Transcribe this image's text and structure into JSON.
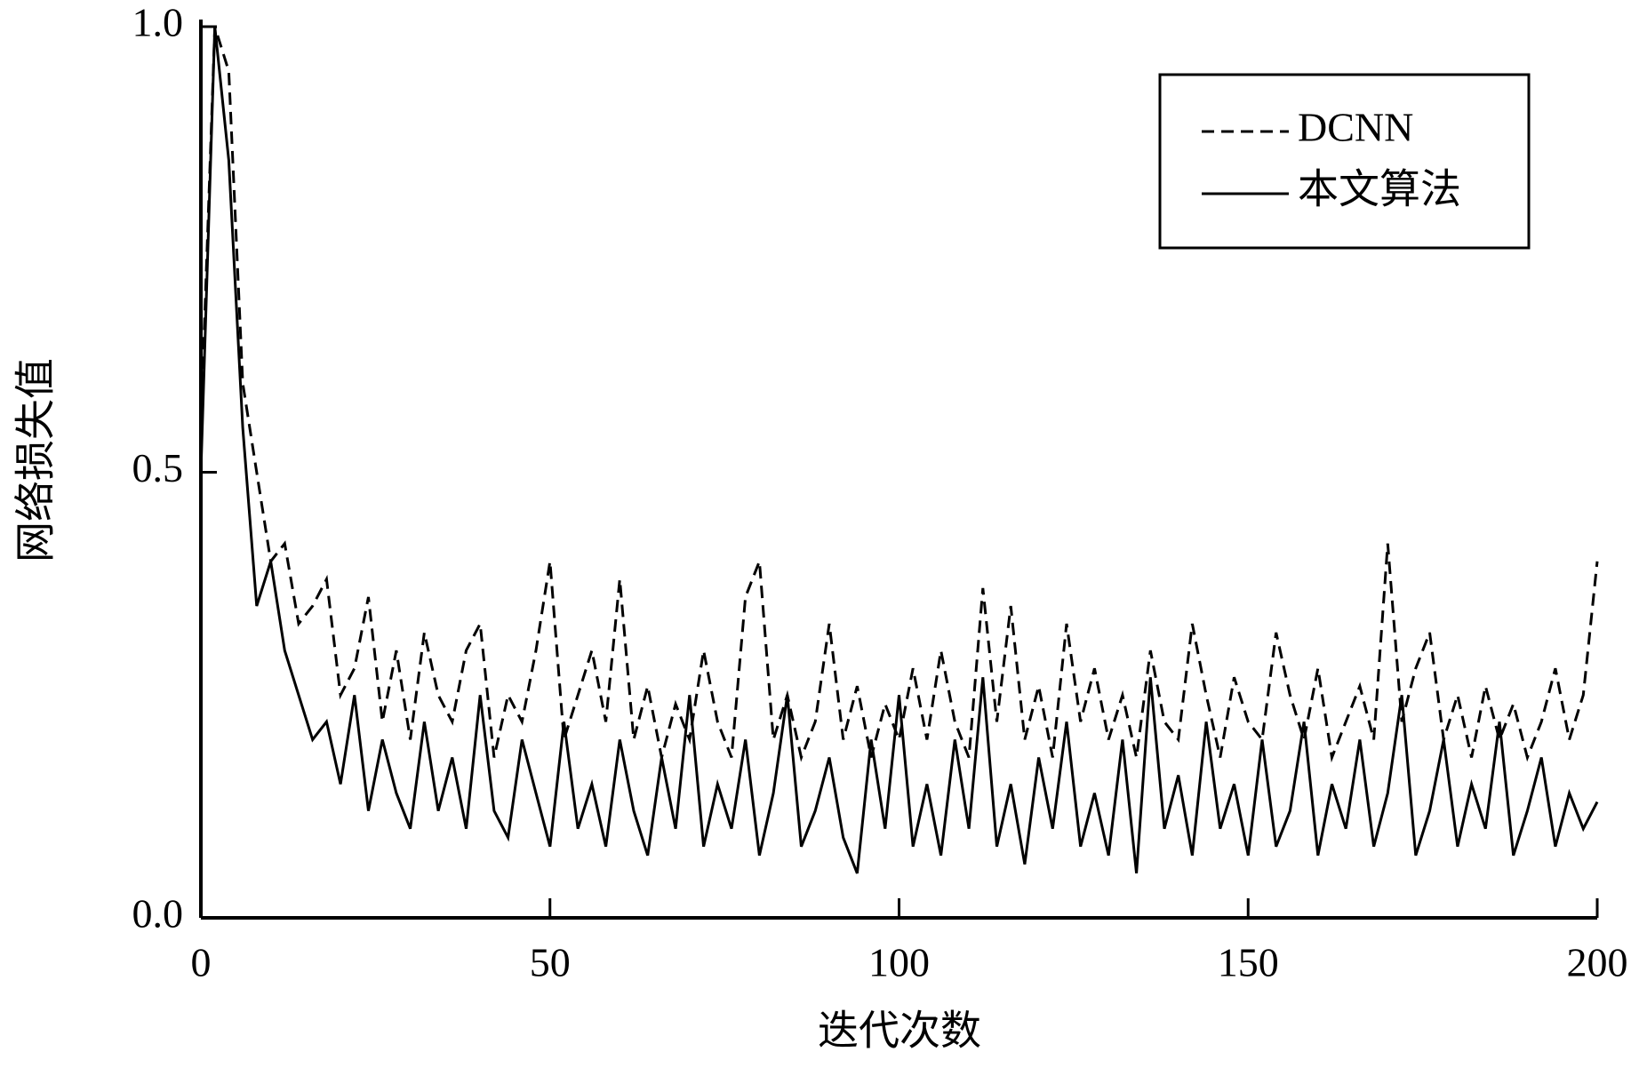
{
  "chart_data": {
    "type": "line",
    "xlabel": "迭代次数",
    "ylabel": "网络损失值",
    "xlim": [
      0,
      200
    ],
    "ylim": [
      0,
      1.0
    ],
    "xticks": [
      0,
      50,
      100,
      150,
      200
    ],
    "yticks": [
      {
        "value": 0,
        "label": "0.0"
      },
      0.5,
      {
        "value": 1,
        "label": "1.0"
      }
    ],
    "legend": "upper right",
    "x": [
      0,
      2,
      4,
      6,
      8,
      10,
      12,
      14,
      16,
      18,
      20,
      22,
      24,
      26,
      28,
      30,
      32,
      34,
      36,
      38,
      40,
      42,
      44,
      46,
      48,
      50,
      52,
      54,
      56,
      58,
      60,
      62,
      64,
      66,
      68,
      70,
      72,
      74,
      76,
      78,
      80,
      82,
      84,
      86,
      88,
      90,
      92,
      94,
      96,
      98,
      100,
      102,
      104,
      106,
      108,
      110,
      112,
      114,
      116,
      118,
      120,
      122,
      124,
      126,
      128,
      130,
      132,
      134,
      136,
      138,
      140,
      142,
      144,
      146,
      148,
      150,
      152,
      154,
      156,
      158,
      160,
      162,
      164,
      166,
      168,
      170,
      172,
      174,
      176,
      178,
      180,
      182,
      184,
      186,
      188,
      190,
      192,
      194,
      196,
      198,
      200
    ],
    "series": [
      {
        "name": "DCNN",
        "color": "#000000",
        "style": "dashed",
        "values": [
          0.55,
          1.0,
          0.95,
          0.6,
          0.5,
          0.4,
          0.42,
          0.33,
          0.35,
          0.38,
          0.25,
          0.28,
          0.36,
          0.22,
          0.3,
          0.2,
          0.32,
          0.25,
          0.22,
          0.3,
          0.33,
          0.18,
          0.25,
          0.22,
          0.3,
          0.4,
          0.2,
          0.25,
          0.3,
          0.22,
          0.38,
          0.2,
          0.26,
          0.18,
          0.24,
          0.2,
          0.3,
          0.22,
          0.18,
          0.36,
          0.4,
          0.2,
          0.25,
          0.18,
          0.22,
          0.33,
          0.2,
          0.26,
          0.18,
          0.24,
          0.2,
          0.28,
          0.2,
          0.3,
          0.22,
          0.18,
          0.37,
          0.22,
          0.35,
          0.2,
          0.26,
          0.18,
          0.33,
          0.22,
          0.28,
          0.2,
          0.25,
          0.18,
          0.3,
          0.22,
          0.2,
          0.33,
          0.25,
          0.18,
          0.27,
          0.22,
          0.2,
          0.32,
          0.25,
          0.2,
          0.28,
          0.18,
          0.22,
          0.26,
          0.2,
          0.42,
          0.22,
          0.28,
          0.32,
          0.2,
          0.25,
          0.18,
          0.26,
          0.2,
          0.24,
          0.18,
          0.22,
          0.28,
          0.2,
          0.25,
          0.4
        ]
      },
      {
        "name": "本文算法",
        "color": "#000000",
        "style": "solid",
        "values": [
          0.5,
          1.0,
          0.85,
          0.55,
          0.35,
          0.4,
          0.3,
          0.25,
          0.2,
          0.22,
          0.15,
          0.25,
          0.12,
          0.2,
          0.14,
          0.1,
          0.22,
          0.12,
          0.18,
          0.1,
          0.25,
          0.12,
          0.09,
          0.2,
          0.14,
          0.08,
          0.22,
          0.1,
          0.15,
          0.08,
          0.2,
          0.12,
          0.07,
          0.18,
          0.1,
          0.25,
          0.08,
          0.15,
          0.1,
          0.2,
          0.07,
          0.14,
          0.25,
          0.08,
          0.12,
          0.18,
          0.09,
          0.05,
          0.2,
          0.1,
          0.25,
          0.08,
          0.15,
          0.07,
          0.2,
          0.1,
          0.27,
          0.08,
          0.15,
          0.06,
          0.18,
          0.1,
          0.22,
          0.08,
          0.14,
          0.07,
          0.2,
          0.05,
          0.27,
          0.1,
          0.16,
          0.07,
          0.22,
          0.1,
          0.15,
          0.07,
          0.2,
          0.08,
          0.12,
          0.22,
          0.07,
          0.15,
          0.1,
          0.2,
          0.08,
          0.14,
          0.25,
          0.07,
          0.12,
          0.2,
          0.08,
          0.15,
          0.1,
          0.22,
          0.07,
          0.12,
          0.18,
          0.08,
          0.14,
          0.1,
          0.13
        ]
      }
    ]
  }
}
